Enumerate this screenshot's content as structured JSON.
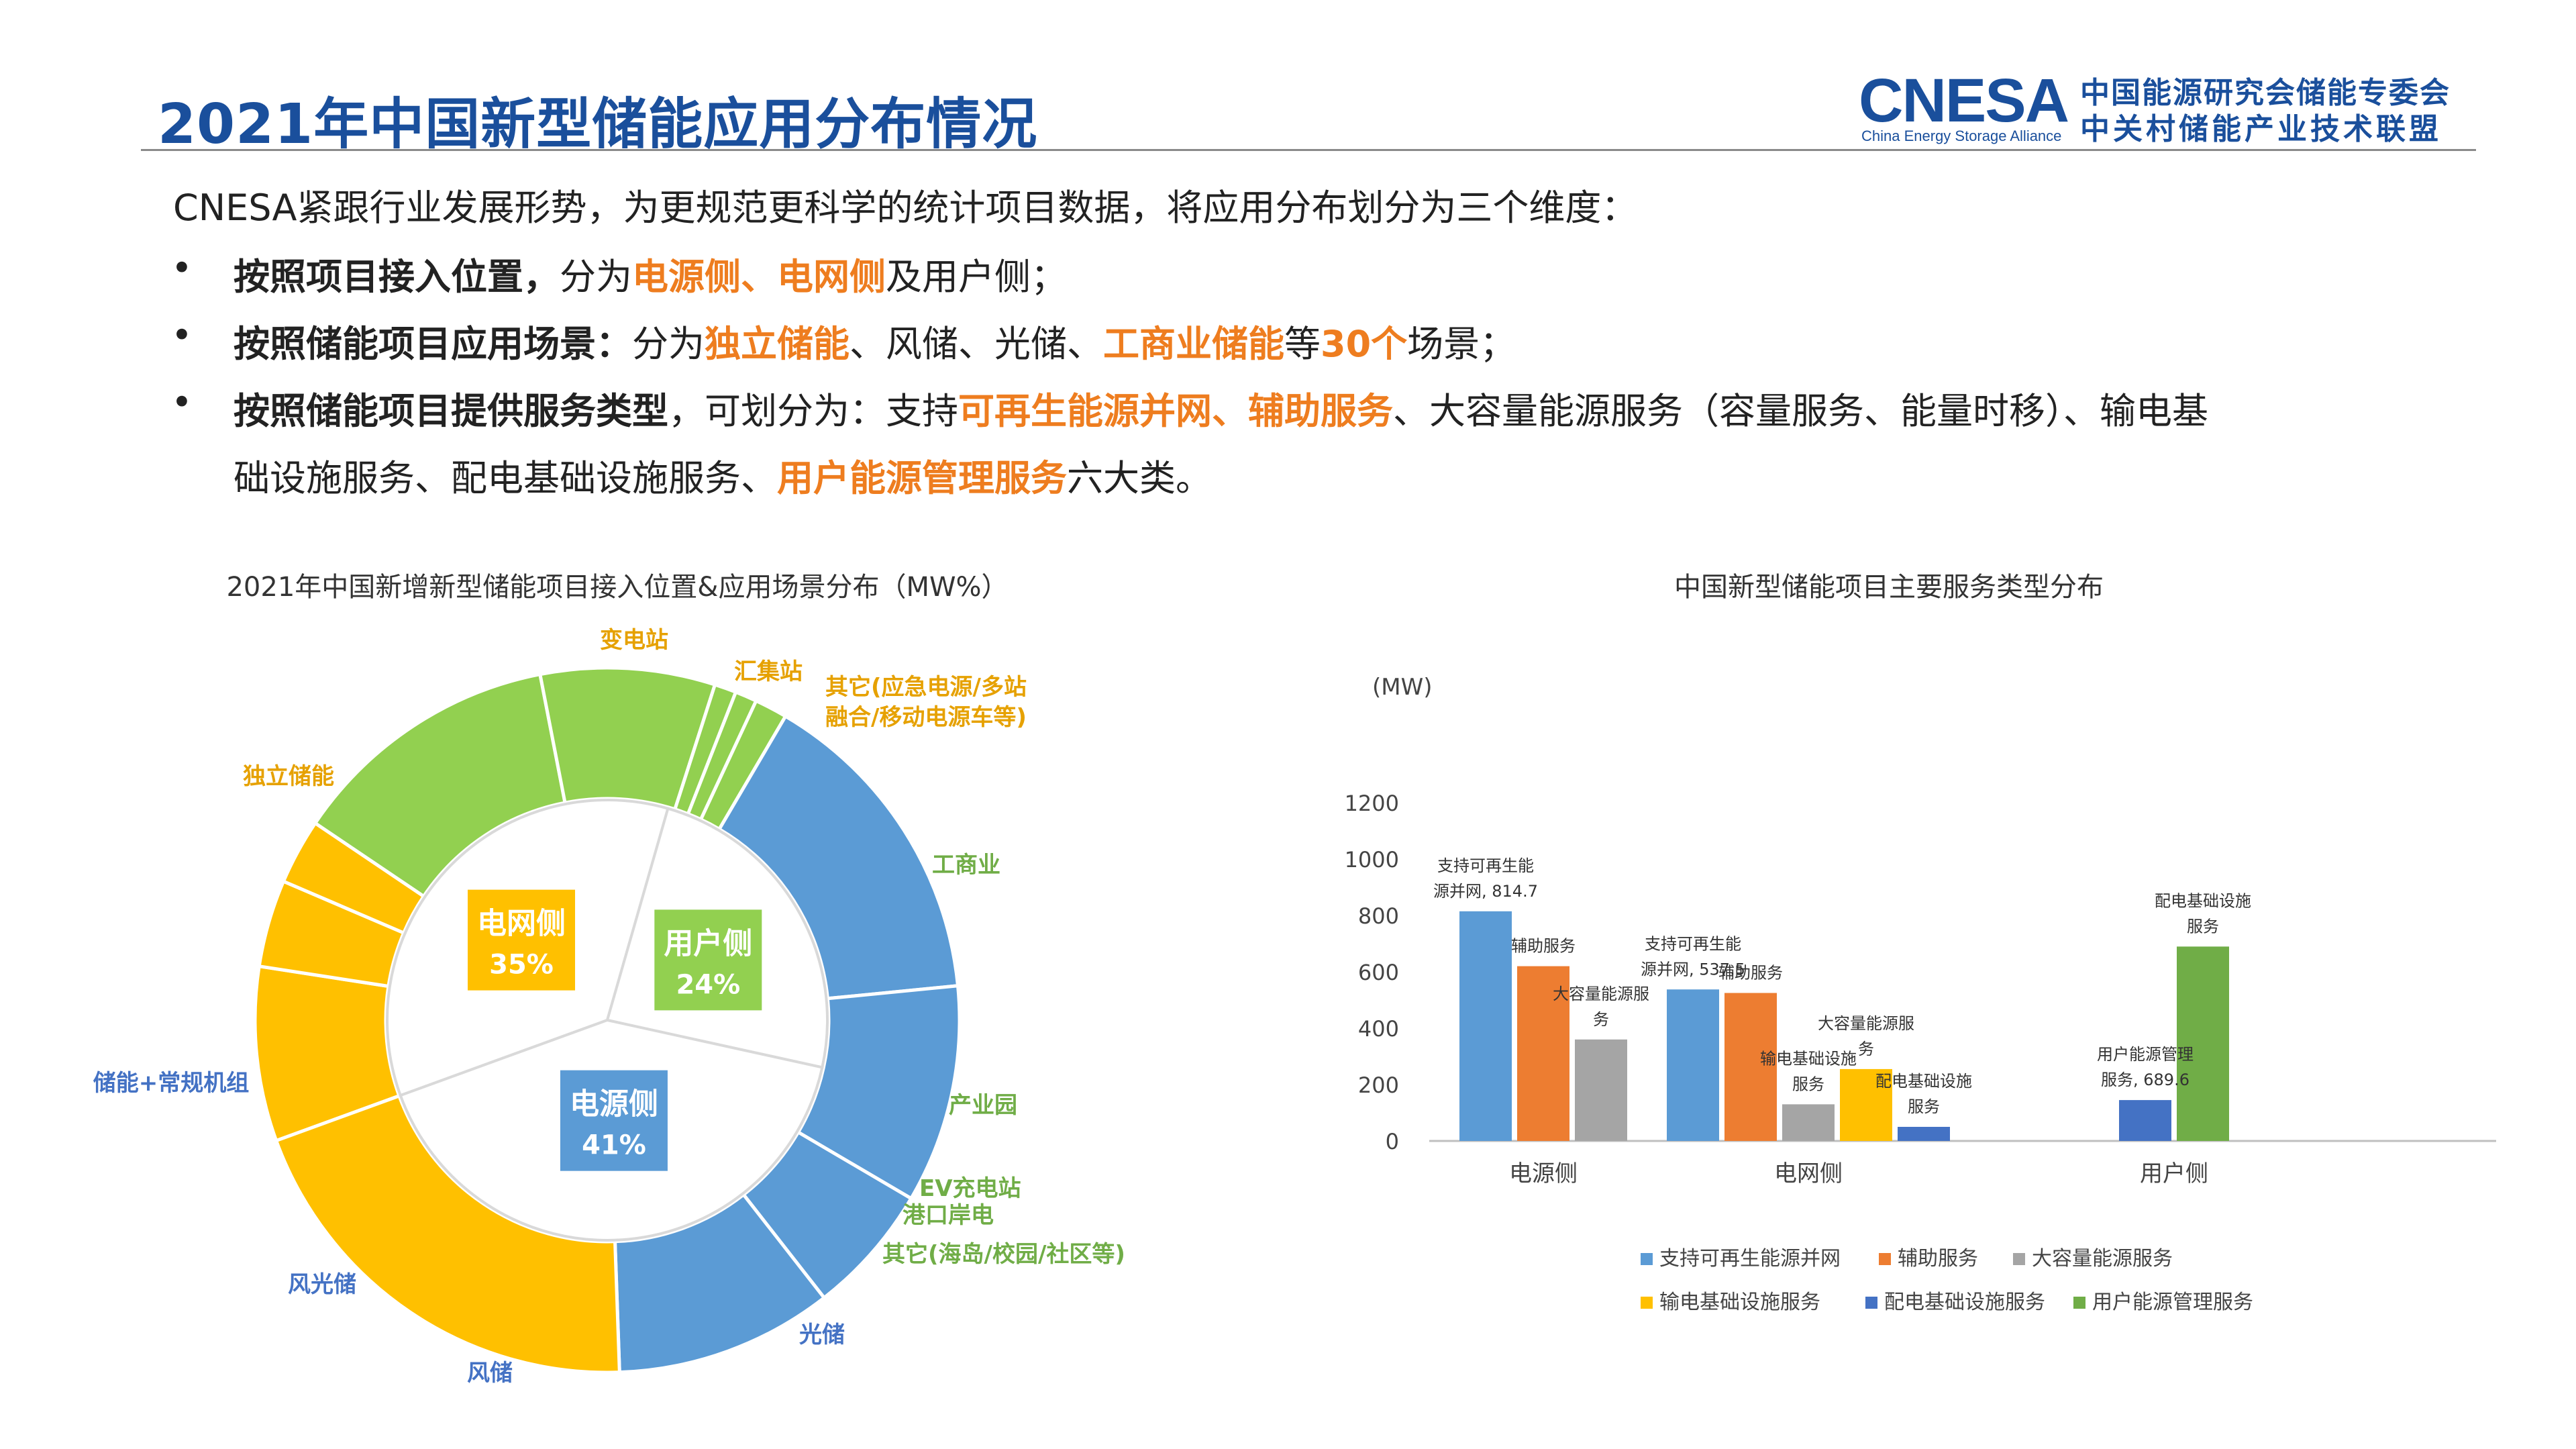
{
  "title": "2021年中国新型储能应用分布情况",
  "logo": {
    "brand": "CNESA",
    "tagline_en": "China Energy Storage Alliance",
    "name_cn_1": "中国能源研究会储能专委会",
    "name_cn_2": "中关村储能产业技术联盟"
  },
  "intro": "CNESA紧跟行业发展形势，为更规范更科学的统计项目数据，将应用分布划分为三个维度：",
  "bullets": {
    "b1": {
      "lead": "按照项目接入位置，",
      "t1": "分为",
      "h1": "电源侧、电网侧",
      "t2": "及用户侧；"
    },
    "b2": {
      "lead": "按照储能项目应用场景：",
      "t1": "分为",
      "h1": "独立储能",
      "t2": "、风储、光储、",
      "h2": "工商业储能",
      "t3": "等",
      "h3": "30个",
      "t4": "场景；"
    },
    "b3": {
      "lead": "按照储能项目提供服务类型",
      "t1": "，可划分为：支持",
      "h1": "可再生能源并网、辅助服务",
      "t2": "、大容量能源服务（容量服务、能量时移）、输电基",
      "t3": "础设施服务、配电基础设施服务、",
      "h2": "用户能源管理服务",
      "t4": "六大类。"
    }
  },
  "chart_data": [
    {
      "type": "pie",
      "title": "2021年中国新增新型储能项目接入位置&应用场景分布（MW%）",
      "inner": [
        {
          "name": "电网侧",
          "value": 35,
          "label": "35%",
          "color": "#ffc000"
        },
        {
          "name": "用户侧",
          "value": 24,
          "label": "24%",
          "color": "#92d050"
        },
        {
          "name": "电源侧",
          "value": 41,
          "label": "41%",
          "color": "#5b9bd5"
        }
      ],
      "outer": [
        {
          "name": "变电站",
          "value": 8.0,
          "color": "#ffc000",
          "label_color": "#e6a100"
        },
        {
          "name": "汇集站",
          "value": 4.0,
          "color": "#ffc000",
          "label_color": "#e6a100"
        },
        {
          "name": "其它(应急电源/多站融合/移动电源车等)",
          "line1": "其它(应急电源/多站",
          "line2": "融合/移动电源车等)",
          "value": 3.0,
          "color": "#ffc000",
          "label_color": "#e6a100"
        },
        {
          "name": "工商业",
          "value": 12.5,
          "color": "#92d050",
          "label_color": "#70ad47"
        },
        {
          "name": "产业园",
          "value": 8.0,
          "color": "#92d050",
          "label_color": "#70ad47"
        },
        {
          "name": "EV充电站",
          "value": 1.0,
          "color": "#92d050",
          "label_color": "#70ad47"
        },
        {
          "name": "港口岸电",
          "value": 1.0,
          "color": "#92d050",
          "label_color": "#70ad47"
        },
        {
          "name": "其它(海岛/校园/社区等)",
          "value": 1.5,
          "color": "#92d050",
          "label_color": "#70ad47"
        },
        {
          "name": "光储",
          "value": 15.0,
          "color": "#5b9bd5",
          "label_color": "#4472c4"
        },
        {
          "name": "风储",
          "value": 10.0,
          "color": "#5b9bd5",
          "label_color": "#4472c4"
        },
        {
          "name": "风光储",
          "value": 6.0,
          "color": "#5b9bd5",
          "label_color": "#4472c4"
        },
        {
          "name": "储能+常规机组",
          "value": 10.0,
          "color": "#5b9bd5",
          "label_color": "#4472c4"
        },
        {
          "name": "独立储能",
          "value": 20.0,
          "color": "#ffc000",
          "label_color": "#e6a100"
        }
      ]
    },
    {
      "type": "bar",
      "title": "中国新型储能项目主要服务类型分布",
      "ylabel": "(MW)",
      "ylim": [
        0,
        1200
      ],
      "yticks": [
        "0",
        "200",
        "400",
        "600",
        "800",
        "1000",
        "1200"
      ],
      "categories": [
        "电源侧",
        "电网侧",
        "用户侧"
      ],
      "series": [
        {
          "name": "支持可再生能源并网",
          "color": "#5b9bd5",
          "values": [
            814.7,
            537.5,
            null
          ]
        },
        {
          "name": "辅助服务",
          "color": "#ed7d31",
          "values": [
            620,
            525,
            null
          ]
        },
        {
          "name": "大容量能源服务",
          "color": "#a5a5a5",
          "values": [
            360,
            130,
            null
          ]
        },
        {
          "name": "输电基础设施服务",
          "color": "#ffc000",
          "values": [
            null,
            255,
            null
          ]
        },
        {
          "name": "配电基础设施服务",
          "color": "#4472c4",
          "values": [
            null,
            50,
            145
          ]
        },
        {
          "name": "用户能源管理服务",
          "color": "#70ad47",
          "values": [
            null,
            null,
            689.6
          ]
        }
      ],
      "data_labels": [
        {
          "l1": "支持可再生能",
          "l2": "源并网, 814.7"
        },
        {
          "l1": "辅助服务",
          "l2": ""
        },
        {
          "l1": "大容量能源服",
          "l2": "务"
        },
        {
          "l1": "支持可再生能",
          "l2": "源并网, 537.5"
        },
        {
          "l1": "辅助服务",
          "l2": ""
        },
        {
          "l1": "输电基础设施",
          "l2": "服务"
        },
        {
          "l1": "大容量能源服",
          "l2": "务"
        },
        {
          "l1": "配电基础设施",
          "l2": "服务"
        },
        {
          "l1": "用户能源管理",
          "l2": "服务, 689.6"
        },
        {
          "l1": "配电基础设施",
          "l2": "服务"
        }
      ],
      "legend_position": "bottom"
    }
  ]
}
